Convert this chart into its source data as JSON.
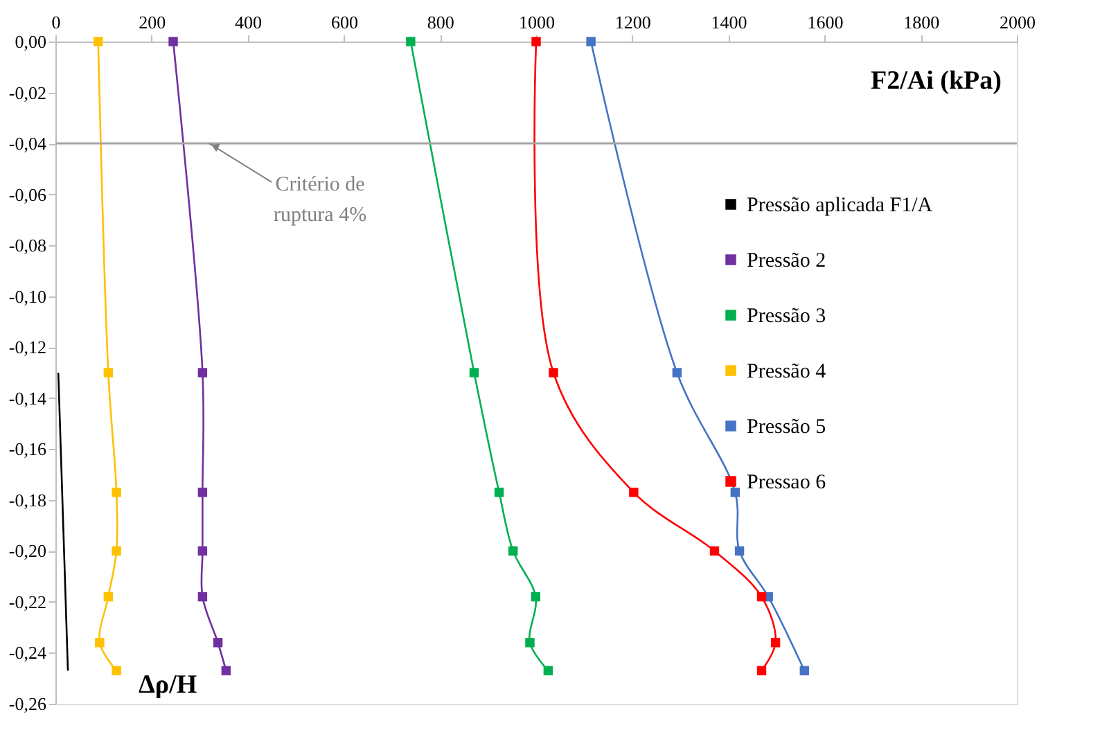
{
  "chart_data": {
    "type": "line",
    "xlabel": "F2/Ai (kPa)",
    "ylabel": "Δρ/H",
    "xlim": [
      0,
      2000
    ],
    "xticks": [
      0,
      200,
      400,
      600,
      800,
      1000,
      1200,
      1400,
      1600,
      1800,
      2000
    ],
    "ylim": [
      -0.26,
      0
    ],
    "yticks": [
      {
        "value": 0,
        "label": "0,00"
      },
      {
        "value": -0.02,
        "label": "-0,02"
      },
      {
        "value": -0.04,
        "label": "-0,04"
      },
      {
        "value": -0.06,
        "label": "-0,06"
      },
      {
        "value": -0.08,
        "label": "-0,08"
      },
      {
        "value": -0.1,
        "label": "-0,10"
      },
      {
        "value": -0.12,
        "label": "-0,12"
      },
      {
        "value": -0.14,
        "label": "-0,14"
      },
      {
        "value": -0.16,
        "label": "-0,16"
      },
      {
        "value": -0.18,
        "label": "-0,18"
      },
      {
        "value": -0.2,
        "label": "-0,20"
      },
      {
        "value": -0.22,
        "label": "-0,22"
      },
      {
        "value": -0.24,
        "label": "-0,24"
      },
      {
        "value": -0.26,
        "label": "-0,26"
      }
    ],
    "grid": false,
    "legend": "right",
    "marker": "square",
    "line_style": "solid",
    "series": [
      {
        "name": "Pressão aplicada F1/A",
        "color": "#000000",
        "marker": "none",
        "x": [
          6,
          26
        ],
        "values": [
          -0.13,
          -0.247
        ]
      },
      {
        "name": "Pressão 2",
        "color": "#7030a0",
        "x": [
          245,
          306,
          306,
          306,
          306,
          338,
          355
        ],
        "values": [
          0,
          -0.13,
          -0.177,
          -0.2,
          -0.218,
          -0.236,
          -0.247
        ]
      },
      {
        "name": "Pressão 3",
        "color": "#00b050",
        "x": [
          739,
          871,
          923,
          952,
          999,
          987,
          1025
        ],
        "values": [
          0,
          -0.13,
          -0.177,
          -0.2,
          -0.218,
          -0.236,
          -0.247
        ]
      },
      {
        "name": "Pressão 4",
        "color": "#ffc000",
        "x": [
          89,
          110,
          127,
          127,
          110,
          92,
          127
        ],
        "values": [
          0,
          -0.13,
          -0.177,
          -0.2,
          -0.218,
          -0.236,
          -0.247
        ]
      },
      {
        "name": "Pressão 5",
        "color": "#4472c4",
        "x": [
          1114,
          1293,
          1414,
          1423,
          1483,
          1500,
          1558
        ],
        "values": [
          0,
          -0.13,
          -0.177,
          -0.2,
          -0.218,
          null,
          -0.247
        ]
      },
      {
        "name": "Pressao 6",
        "color": "#ff0000",
        "x": [
          1000,
          1036,
          1203,
          1371,
          1469,
          1498,
          1469
        ],
        "values": [
          0,
          -0.13,
          -0.177,
          -0.2,
          -0.218,
          -0.236,
          -0.247
        ]
      }
    ],
    "ref_lines": [
      {
        "axis": "y",
        "value": -0.04,
        "color": "#a6a6a6",
        "line_style": "solid"
      }
    ],
    "annotations": [
      {
        "text": "Critério de\nruptura 4%",
        "x": 320,
        "y": -0.04
      }
    ]
  }
}
